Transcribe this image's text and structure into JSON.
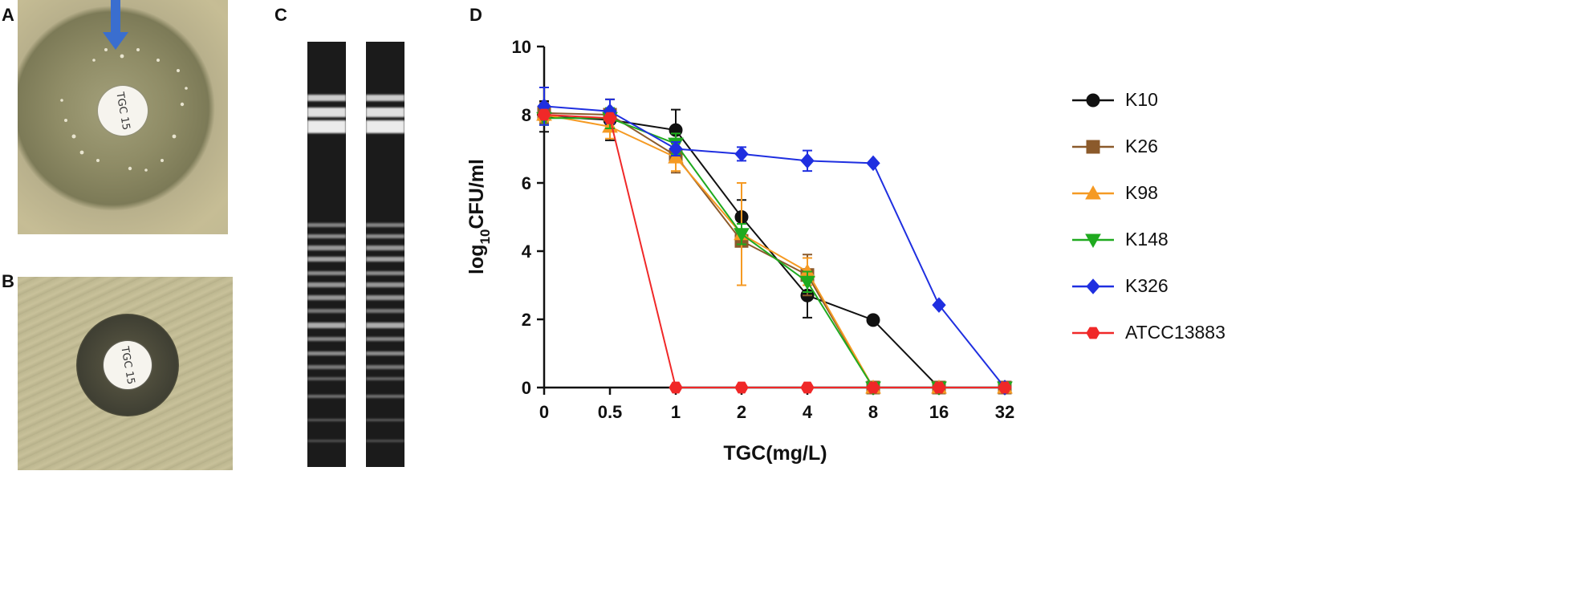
{
  "panels": {
    "a": "A",
    "b": "B",
    "c": "C",
    "d": "D"
  },
  "disk_label_a": "TGC 15",
  "disk_label_b": "TGC 15",
  "chart_data": {
    "type": "line",
    "title": "",
    "xlabel": "TGC(mg/L)",
    "ylabel": "log10CFU/ml",
    "ylabel_main": "log",
    "ylabel_sub": "10",
    "ylabel_rest": "CFU/ml",
    "categories": [
      "0",
      "0.5",
      "1",
      "2",
      "4",
      "8",
      "16",
      "32"
    ],
    "ylim": [
      0,
      10
    ],
    "yticks": [
      "0",
      "2",
      "4",
      "6",
      "8",
      "10"
    ],
    "legend_position": "right",
    "series": [
      {
        "name": "K10",
        "color": "#111111",
        "marker": "circle",
        "values": [
          7.95,
          7.85,
          7.55,
          5.0,
          2.7,
          1.98,
          0,
          0
        ],
        "errors": [
          0.45,
          0.6,
          0.6,
          0.5,
          0.65,
          0,
          0,
          0
        ]
      },
      {
        "name": "K26",
        "color": "#8b5a2b",
        "marker": "square",
        "values": [
          8.05,
          8.0,
          6.8,
          4.3,
          3.3,
          0,
          0,
          0
        ],
        "errors": [
          0.3,
          0.45,
          0.5,
          0.0,
          0.6,
          0,
          0,
          0
        ]
      },
      {
        "name": "K98",
        "color": "#f59a23",
        "marker": "triangle-up",
        "values": [
          8.0,
          7.65,
          6.75,
          4.5,
          3.4,
          0,
          0,
          0
        ],
        "errors": [
          0.2,
          0.35,
          0.4,
          1.5,
          0.4,
          0,
          0,
          0
        ]
      },
      {
        "name": "K148",
        "color": "#1faa1f",
        "marker": "triangle-down",
        "values": [
          7.9,
          7.9,
          7.15,
          4.5,
          3.1,
          0,
          0,
          0
        ],
        "errors": [
          0.2,
          0.3,
          0.3,
          0.3,
          0.3,
          0,
          0,
          0
        ]
      },
      {
        "name": "K326",
        "color": "#1f2fe0",
        "marker": "diamond",
        "values": [
          8.25,
          8.1,
          7.0,
          6.85,
          6.65,
          6.58,
          2.42,
          0
        ],
        "errors": [
          0.55,
          0.35,
          0.2,
          0.2,
          0.3,
          0,
          0,
          0
        ]
      },
      {
        "name": "ATCC13883",
        "color": "#f02828",
        "marker": "hexagon",
        "values": [
          8.0,
          7.9,
          0,
          0,
          0,
          0,
          0,
          0
        ],
        "errors": [
          0,
          0,
          0,
          0,
          0,
          0,
          0,
          0
        ]
      }
    ]
  }
}
